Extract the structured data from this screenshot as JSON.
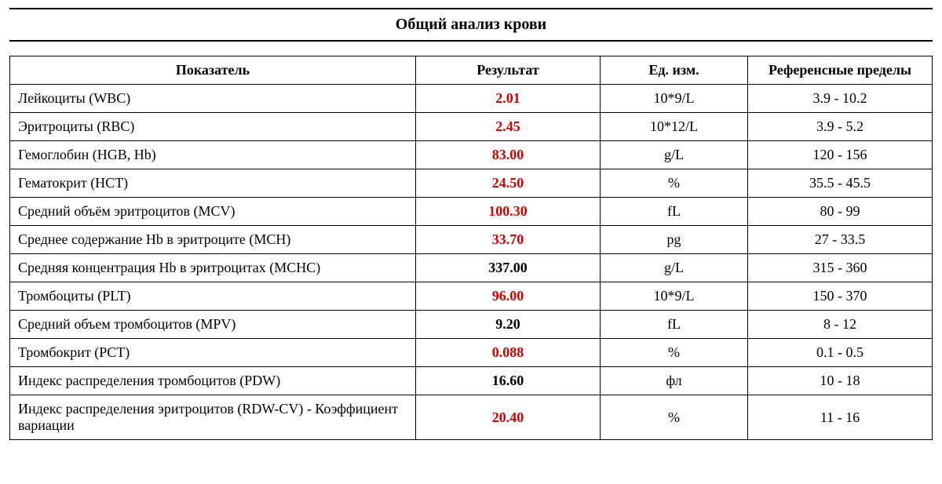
{
  "title": "Общий анализ крови",
  "table": {
    "columns": {
      "name": "Показатель",
      "result": "Результат",
      "unit": "Ед. изм.",
      "reference": "Референсные пределы"
    },
    "column_widths_percent": [
      44,
      20,
      16,
      20
    ],
    "abnormal_color": "#d40000",
    "normal_color": "#000000",
    "border_color": "#000000",
    "background_color": "#ffffff",
    "rows": [
      {
        "name": "Лейкоциты (WBC)",
        "result": "2.01",
        "unit": "10*9/L",
        "reference": "3.9 - 10.2",
        "abnormal": true
      },
      {
        "name": "Эритроциты (RBC)",
        "result": "2.45",
        "unit": "10*12/L",
        "reference": "3.9 - 5.2",
        "abnormal": true
      },
      {
        "name": "Гемоглобин (HGB, Hb)",
        "result": "83.00",
        "unit": "g/L",
        "reference": "120 - 156",
        "abnormal": true
      },
      {
        "name": "Гематокрит (HCT)",
        "result": "24.50",
        "unit": "%",
        "reference": "35.5 - 45.5",
        "abnormal": true
      },
      {
        "name": "Средний объём эритроцитов  (MCV)",
        "result": "100.30",
        "unit": "fL",
        "reference": "80 - 99",
        "abnormal": true
      },
      {
        "name": "Среднее содержание Hb в эритроците (MCH)",
        "result": "33.70",
        "unit": "pg",
        "reference": "27 - 33.5",
        "abnormal": true
      },
      {
        "name": "Средняя концентрация Hb в эритроцитах (MCHC)",
        "result": "337.00",
        "unit": "g/L",
        "reference": "315 - 360",
        "abnormal": false
      },
      {
        "name": "Тромбоциты (PLT)",
        "result": "96.00",
        "unit": "10*9/L",
        "reference": "150 - 370",
        "abnormal": true
      },
      {
        "name": "Средний объем тромбоцитов (MPV)",
        "result": "9.20",
        "unit": "fL",
        "reference": "8 - 12",
        "abnormal": false
      },
      {
        "name": "Тромбокрит (PCT)",
        "result": "0.088",
        "unit": "%",
        "reference": "0.1 - 0.5",
        "abnormal": true
      },
      {
        "name": "Индекс распределения тромбоцитов (PDW)",
        "result": "16.60",
        "unit": "фл",
        "reference": "10 - 18",
        "abnormal": false
      },
      {
        "name": "Индекс распределения эритроцитов (RDW-CV) - Коэффициент вариации",
        "result": "20.40",
        "unit": "%",
        "reference": "11 - 16",
        "abnormal": true
      }
    ]
  }
}
